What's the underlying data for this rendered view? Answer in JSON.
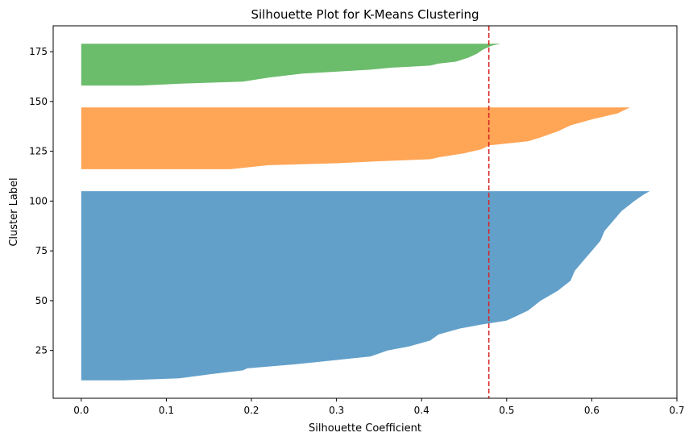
{
  "chart_data": {
    "type": "area",
    "orientation": "horizontal",
    "title": "Silhouette Plot for K-Means Clustering",
    "xlabel": "Silhouette Coefficient",
    "ylabel": "Cluster Label",
    "xlim": [
      -0.033,
      0.7
    ],
    "ylim": [
      1,
      188
    ],
    "xticks": [
      0.0,
      0.1,
      0.2,
      0.3,
      0.4,
      0.5,
      0.6,
      0.7
    ],
    "xtick_labels": [
      "0.0",
      "0.1",
      "0.2",
      "0.3",
      "0.4",
      "0.5",
      "0.6",
      "0.7"
    ],
    "yticks": [
      25,
      50,
      75,
      100,
      125,
      150,
      175
    ],
    "ytick_labels": [
      "25",
      "50",
      "75",
      "100",
      "125",
      "150",
      "175"
    ],
    "grid": false,
    "average_line": {
      "x": 0.479,
      "color": "#d62728",
      "style": "dashed"
    },
    "series": [
      {
        "color": "#1f77b4",
        "opacity": 0.7,
        "y_range": [
          10,
          105
        ],
        "profile": [
          [
            10,
            0.05
          ],
          [
            11,
            0.115
          ],
          [
            13,
            0.15
          ],
          [
            15,
            0.19
          ],
          [
            16,
            0.195
          ],
          [
            18,
            0.25
          ],
          [
            20,
            0.295
          ],
          [
            22,
            0.34
          ],
          [
            25,
            0.36
          ],
          [
            27,
            0.385
          ],
          [
            30,
            0.41
          ],
          [
            33,
            0.42
          ],
          [
            36,
            0.445
          ],
          [
            38,
            0.47
          ],
          [
            40,
            0.5
          ],
          [
            42,
            0.51
          ],
          [
            45,
            0.525
          ],
          [
            50,
            0.54
          ],
          [
            55,
            0.56
          ],
          [
            60,
            0.575
          ],
          [
            65,
            0.58
          ],
          [
            70,
            0.59
          ],
          [
            75,
            0.6
          ],
          [
            80,
            0.61
          ],
          [
            85,
            0.615
          ],
          [
            90,
            0.625
          ],
          [
            95,
            0.635
          ],
          [
            100,
            0.65
          ],
          [
            103,
            0.66
          ],
          [
            105,
            0.668
          ]
        ]
      },
      {
        "color": "#ff7f0e",
        "opacity": 0.7,
        "y_range": [
          116,
          147
        ],
        "profile": [
          [
            116,
            0.175
          ],
          [
            118,
            0.22
          ],
          [
            119,
            0.3
          ],
          [
            120,
            0.35
          ],
          [
            121,
            0.41
          ],
          [
            122,
            0.42
          ],
          [
            124,
            0.45
          ],
          [
            126,
            0.47
          ],
          [
            128,
            0.48
          ],
          [
            130,
            0.525
          ],
          [
            132,
            0.54
          ],
          [
            135,
            0.56
          ],
          [
            138,
            0.575
          ],
          [
            141,
            0.6
          ],
          [
            144,
            0.63
          ],
          [
            146,
            0.64
          ],
          [
            147,
            0.645
          ]
        ]
      },
      {
        "color": "#2ca02c",
        "opacity": 0.7,
        "y_range": [
          158,
          179
        ],
        "profile": [
          [
            158,
            0.07
          ],
          [
            159,
            0.12
          ],
          [
            160,
            0.19
          ],
          [
            162,
            0.22
          ],
          [
            164,
            0.26
          ],
          [
            166,
            0.34
          ],
          [
            167,
            0.365
          ],
          [
            168,
            0.41
          ],
          [
            169,
            0.42
          ],
          [
            170,
            0.44
          ],
          [
            172,
            0.455
          ],
          [
            174,
            0.465
          ],
          [
            176,
            0.472
          ],
          [
            178,
            0.482
          ],
          [
            179,
            0.493
          ]
        ]
      }
    ]
  }
}
